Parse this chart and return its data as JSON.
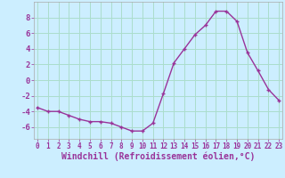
{
  "x": [
    0,
    1,
    2,
    3,
    4,
    5,
    6,
    7,
    8,
    9,
    10,
    11,
    12,
    13,
    14,
    15,
    16,
    17,
    18,
    19,
    20,
    21,
    22,
    23
  ],
  "y": [
    -3.5,
    -4.0,
    -4.0,
    -4.5,
    -5.0,
    -5.3,
    -5.3,
    -5.5,
    -6.0,
    -6.5,
    -6.5,
    -5.5,
    -1.7,
    2.2,
    4.0,
    5.8,
    7.0,
    8.8,
    8.8,
    7.5,
    3.5,
    1.2,
    -1.2,
    -2.6
  ],
  "line_color": "#993399",
  "marker": "+",
  "marker_size": 3,
  "marker_linewidth": 1.0,
  "line_width": 1.0,
  "bg_color": "#cceeff",
  "grid_color": "#aaddcc",
  "xlabel": "Windchill (Refroidissement éolien,°C)",
  "xlabel_fontsize": 7.0,
  "yticks": [
    -6,
    -4,
    -2,
    0,
    2,
    4,
    6,
    8
  ],
  "xticks": [
    0,
    1,
    2,
    3,
    4,
    5,
    6,
    7,
    8,
    9,
    10,
    11,
    12,
    13,
    14,
    15,
    16,
    17,
    18,
    19,
    20,
    21,
    22,
    23
  ],
  "xlim": [
    -0.3,
    23.3
  ],
  "ylim": [
    -7.5,
    10.0
  ]
}
